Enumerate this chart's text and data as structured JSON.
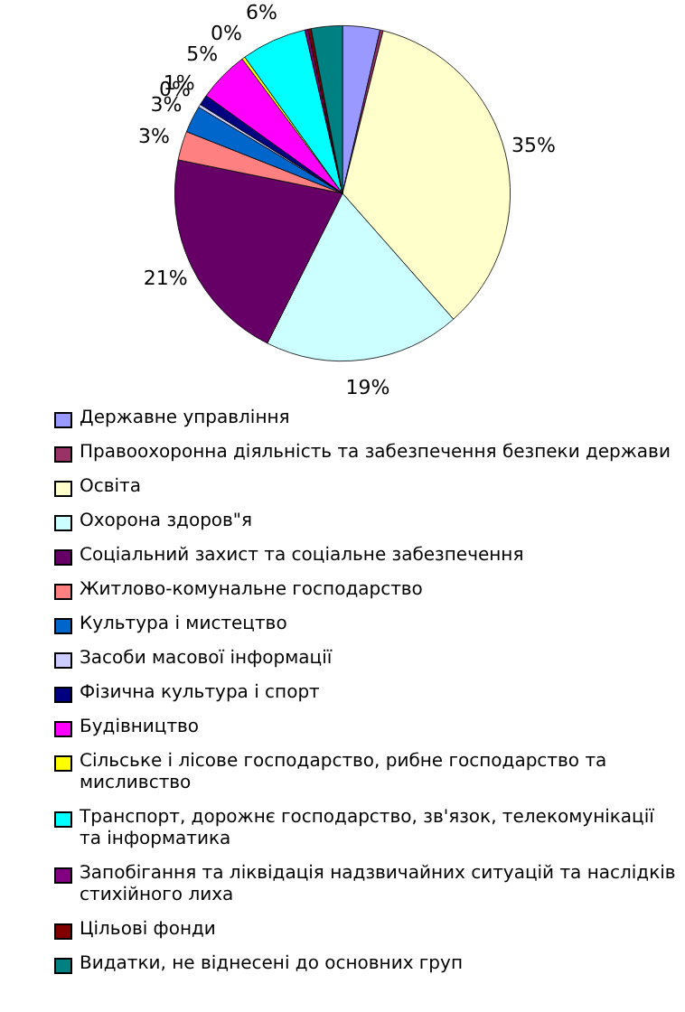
{
  "chart_data": {
    "type": "pie",
    "categories": [
      "Державне управління",
      "Правоохоронна діяльність та забезпечення безпеки держави",
      "Освіта",
      "Охорона здоров\"я",
      "Соціальний захист та соціальне забезпечення",
      "Житлово-комунальне господарство",
      "Культура і мистецтво",
      "Засоби масової інформації",
      "Фізична культура і спорт",
      "Будівництво",
      "Сільське і лісове господарство, рибне господарство та мисливство",
      "Транспорт, дорожнє господарство, зв'язок, телекомунікації та інформатика",
      "Запобігання та ліквідація надзвичайних ситуацій та наслідків стихійного лиха",
      "Цільові фонди",
      "Видатки, не віднесені до основних груп"
    ],
    "values": [
      3.6,
      0.3,
      34.6,
      18.9,
      20.8,
      2.8,
      2.6,
      0.3,
      1,
      4.9,
      0.3,
      6.3,
      0.3,
      0.3,
      3
    ],
    "value_labels": [
      null,
      null,
      "35%",
      "19%",
      "21%",
      "3%",
      "3%",
      "0%",
      "1%",
      "5%",
      "0%",
      "6%",
      null,
      null,
      null
    ],
    "colors": [
      "#9999ff",
      "#993366",
      "#ffffcc",
      "#ccffff",
      "#660066",
      "#ff8080",
      "#0066cc",
      "#ccccff",
      "#000080",
      "#ff00ff",
      "#ffff00",
      "#00ffff",
      "#800080",
      "#800000",
      "#008080"
    ],
    "legend": "bottom"
  }
}
